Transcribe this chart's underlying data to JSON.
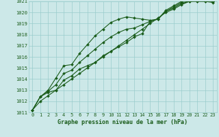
{
  "x": [
    0,
    1,
    2,
    3,
    4,
    5,
    6,
    7,
    8,
    9,
    10,
    11,
    12,
    13,
    14,
    15,
    16,
    17,
    18,
    19,
    20,
    21,
    22,
    23
  ],
  "line1": [
    1011.2,
    1012.4,
    1012.8,
    1013.0,
    1013.9,
    1014.3,
    1014.9,
    1015.2,
    1015.5,
    1016.1,
    1016.5,
    1016.9,
    1017.3,
    1017.8,
    1018.1,
    1019.2,
    1019.4,
    1020.1,
    1020.4,
    1020.8,
    1021.0,
    1021.0,
    1021.0,
    1021.0
  ],
  "line2": [
    1011.2,
    1012.4,
    1013.0,
    1014.1,
    1015.2,
    1015.3,
    1016.3,
    1017.1,
    1017.9,
    1018.5,
    1019.1,
    1019.4,
    1019.6,
    1019.5,
    1019.4,
    1019.3,
    1019.4,
    1020.2,
    1020.6,
    1021.0,
    1021.1,
    1021.1,
    1021.1,
    1021.0
  ],
  "line3": [
    1011.2,
    1012.4,
    1012.9,
    1013.5,
    1014.5,
    1014.8,
    1015.5,
    1016.1,
    1016.7,
    1017.3,
    1017.8,
    1018.2,
    1018.5,
    1018.6,
    1018.9,
    1019.2,
    1019.4,
    1020.1,
    1020.5,
    1020.9,
    1021.0,
    1021.05,
    1021.05,
    1021.0
  ],
  "line4": [
    1011.2,
    1012.0,
    1012.5,
    1013.0,
    1013.5,
    1014.0,
    1014.5,
    1015.0,
    1015.5,
    1016.0,
    1016.5,
    1017.0,
    1017.5,
    1018.0,
    1018.5,
    1019.0,
    1019.5,
    1020.0,
    1020.3,
    1020.7,
    1021.0,
    1021.0,
    1021.0,
    1020.9
  ],
  "ylim": [
    1011,
    1021
  ],
  "yticks": [
    1011,
    1012,
    1013,
    1014,
    1015,
    1016,
    1017,
    1018,
    1019,
    1020,
    1021
  ],
  "xticks": [
    0,
    1,
    2,
    3,
    4,
    5,
    6,
    7,
    8,
    9,
    10,
    11,
    12,
    13,
    14,
    15,
    16,
    17,
    18,
    19,
    20,
    21,
    22,
    23
  ],
  "bg_color": "#cce8e8",
  "grid_color": "#99cccc",
  "line_color": "#1a5c1a",
  "xlabel": "Graphe pression niveau de la mer (hPa)",
  "xlabel_color": "#1a5c1a",
  "tick_color": "#1a5c1a",
  "line_width": 0.8,
  "marker_size": 2.0,
  "font_size_ticks": 5.0,
  "font_size_xlabel": 6.0
}
